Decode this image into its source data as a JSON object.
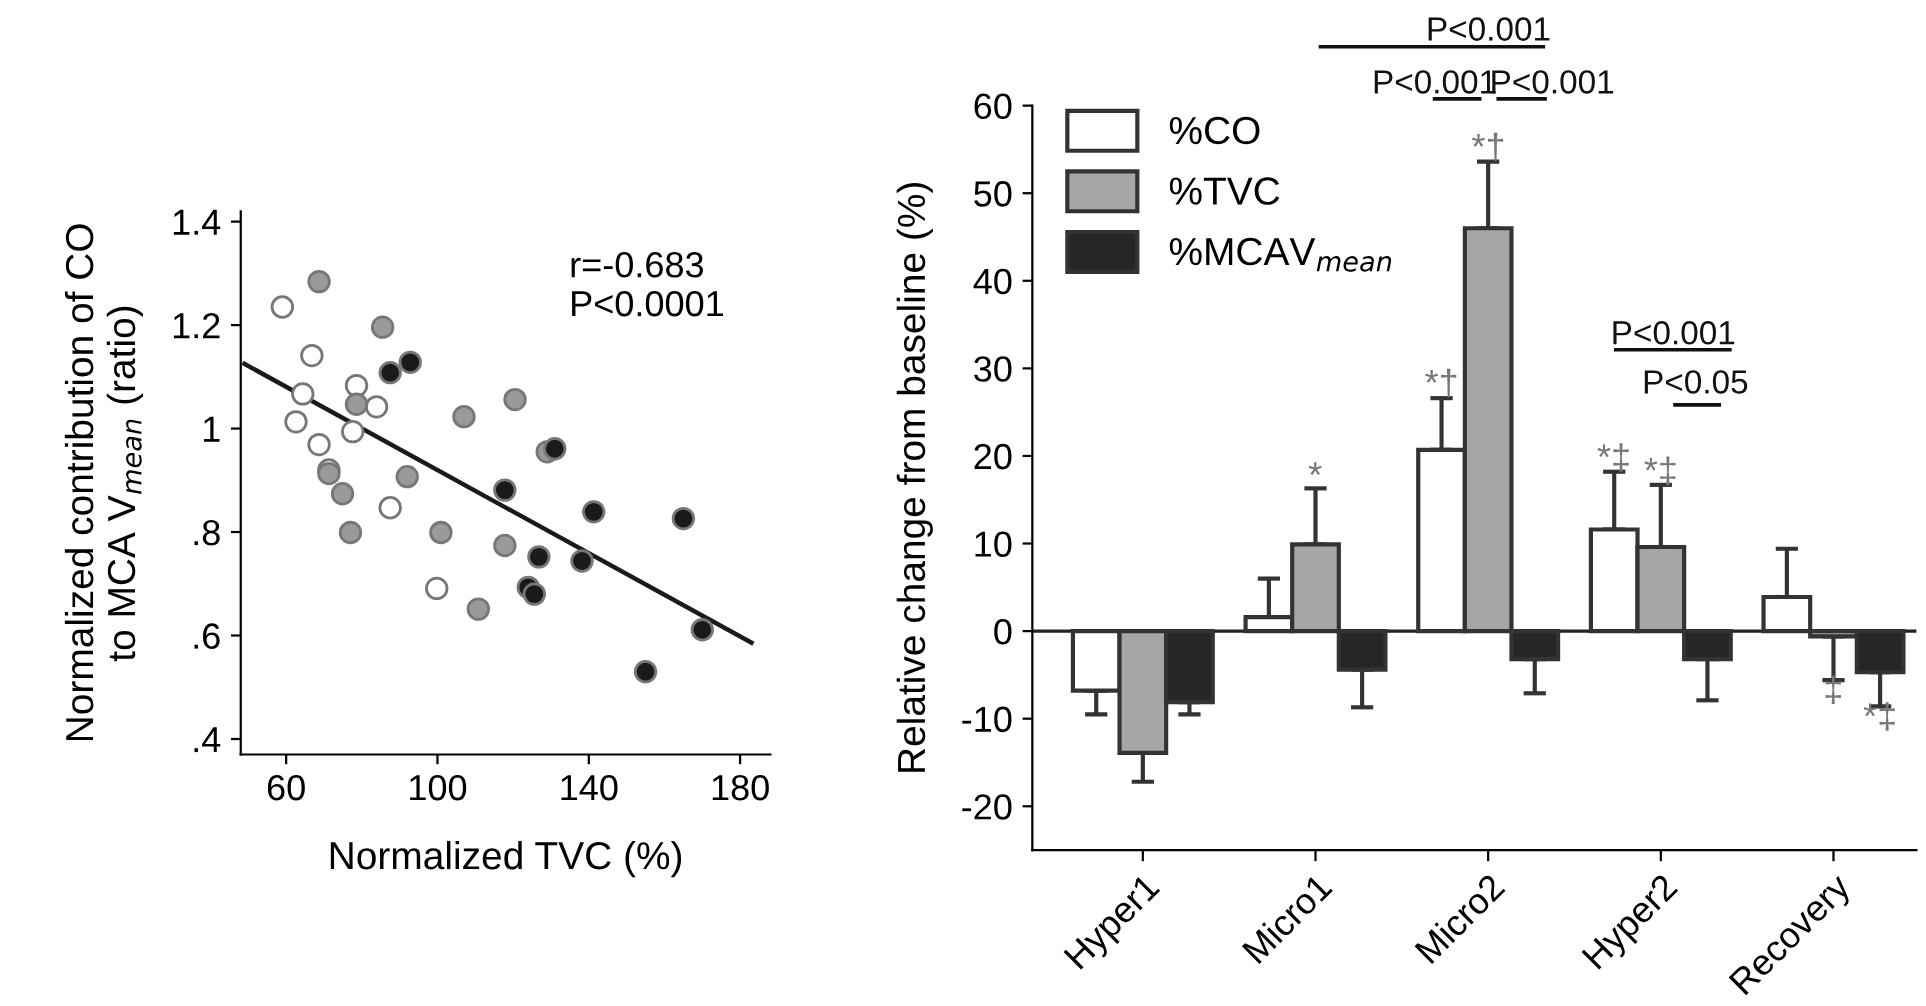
{
  "chart_data": [
    {
      "type": "scatter",
      "xlabel": "Normalized TVC (%)",
      "ylabel": "Normalized contribution of CO\nto MCA V$_{mean}$ (ratio)",
      "xlim": [
        48,
        188
      ],
      "ylim": [
        0.37,
        1.42
      ],
      "xticks": [
        60,
        100,
        140,
        180
      ],
      "yticks": [
        {
          "value": 0.4,
          "label": ".4"
        },
        {
          "value": 0.6,
          "label": ".6"
        },
        {
          "value": 0.8,
          "label": ".8"
        },
        {
          "value": 1,
          "label": "1"
        },
        {
          "value": 1.2,
          "label": "1.2"
        },
        {
          "value": 1.4,
          "label": "1.4"
        }
      ],
      "grid": false,
      "legend": false,
      "marker": "circle",
      "annotations": [
        "r=-0.683",
        "P<0.0001"
      ],
      "series": [
        {
          "color": "#ffffff",
          "x": [
            59,
            66.8,
            64.4,
            62.6,
            68.7,
            71.3,
            78.6,
            77.6,
            83.9,
            87.5,
            99.8
          ],
          "values": [
            1.235,
            1.141,
            1.067,
            1.013,
            0.969,
            0.92,
            1.083,
            0.994,
            1.042,
            0.847,
            0.691
          ]
        },
        {
          "color": "#9a9a9a",
          "x": [
            68.7,
            85.5,
            78.6,
            71.3,
            74.9,
            77,
            92,
            100.9,
            107,
            117.8,
            110.8,
            120.5,
            129
          ],
          "values": [
            1.284,
            1.196,
            1.047,
            0.913,
            0.874,
            0.799,
            0.907,
            0.799,
            1.023,
            0.774,
            0.651,
            1.056,
            0.955
          ]
        },
        {
          "color": "#1a1a1a",
          "x": [
            87.5,
            92.8,
            131,
            117.8,
            141.3,
            126.8,
            138.2,
            124,
            125.6,
            165,
            170,
            155
          ],
          "values": [
            1.108,
            1.128,
            0.961,
            0.881,
            0.839,
            0.752,
            0.744,
            0.693,
            0.68,
            0.826,
            0.611,
            0.53
          ]
        },
        {
          "type": "line",
          "color": "#1a1a1a",
          "marker": "none",
          "x": [
            49,
            183
          ],
          "values": [
            1.125,
            0.586
          ]
        }
      ]
    },
    {
      "type": "bar",
      "ylabel": "Relative change from baseline (%)",
      "categories": [
        "Hyper1",
        "Micro1",
        "Micro2",
        "Hyper2",
        "Recovery"
      ],
      "ylim": [
        -25,
        60
      ],
      "yticks": [
        -20,
        -10,
        0,
        10,
        20,
        30,
        40,
        50,
        60
      ],
      "grid": false,
      "legend": "top left",
      "ref_lines": [
        {
          "axis": "y",
          "value": 0
        }
      ],
      "annotations": [
        "*",
        "*†",
        "*†",
        "*‡",
        "*‡",
        "‡",
        "*‡",
        "P<0.001",
        "P<0.001",
        "P<0.001",
        "P<0.001",
        "P<0.05"
      ],
      "series": [
        {
          "name": "%CO",
          "color": "#ffffff",
          "values": [
            -6.8,
            1.6,
            20.7,
            11.6,
            3.9
          ],
          "errors": [
            [
              -9.5,
              -6.8
            ],
            [
              1.6,
              6.0
            ],
            [
              20.7,
              26.6
            ],
            [
              11.6,
              18.2
            ],
            [
              3.9,
              9.4
            ]
          ]
        },
        {
          "name": "%TVC",
          "color": "#a6a6a6",
          "values": [
            -13.9,
            9.9,
            46.0,
            9.6,
            -0.6
          ],
          "errors": [
            [
              -17.2,
              -13.9
            ],
            [
              9.9,
              16.3
            ],
            [
              46.0,
              53.6
            ],
            [
              9.6,
              16.7
            ],
            [
              -5.6,
              -0.6
            ]
          ]
        },
        {
          "name": "%MCAV$_{mean}$",
          "color": "#262626",
          "values": [
            -8.1,
            -4.4,
            -3.2,
            -3.2,
            -4.7
          ],
          "errors": [
            [
              -9.5,
              -8.1
            ],
            [
              -8.7,
              -4.4
            ],
            [
              -7.1,
              -3.2
            ],
            [
              -7.9,
              -3.2
            ],
            [
              -8.6,
              -4.7
            ]
          ]
        }
      ]
    }
  ]
}
